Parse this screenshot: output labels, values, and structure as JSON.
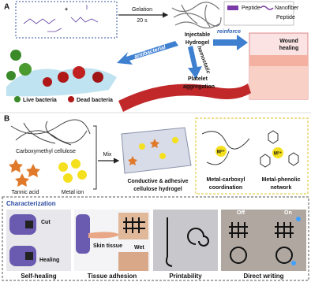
{
  "panel_a": {
    "label": "A",
    "plus": "+",
    "gelation": [
      "Gelation",
      "20 s"
    ],
    "legend": {
      "peptide": "Peptide",
      "nanofiber_peptide": [
        "Nanofiber",
        "Peptide"
      ]
    },
    "injectable_hydrogel": [
      "Injectable",
      "Hydrogel"
    ],
    "arrows": {
      "antibacterial": "antibacterial",
      "hemostatic": "hemostatic",
      "reinforce": "reinforce"
    },
    "wound_healing": [
      "Wound",
      "healing"
    ],
    "platelet_aggregation": [
      "Platelet",
      "aggregation"
    ],
    "live_bacteria": "Live bacteria",
    "dead_bacteria": "Dead bacteria"
  },
  "panel_b": {
    "label": "B",
    "carboxymethyl_cellulose": "Carboxymethyl cellulose",
    "tannic_acid": "Tannic acid",
    "metal_ion": "Metal ion",
    "mix": "Mix",
    "hydrogel": [
      "Conductive & adhesive",
      "cellulose hydrogel"
    ],
    "metal_symbol": [
      "M²⁺",
      "M²⁺"
    ],
    "metal_carboxyl": [
      "Metal-carboxyl",
      "coordination"
    ],
    "metal_phenolic": [
      "Metal-phenolic",
      "network"
    ],
    "characterization": {
      "title": "Characterization",
      "cut": "Cut",
      "healing": "Healing",
      "skin_tissue": "Skin tissue",
      "wet": "Wet",
      "off": "Off",
      "on": "On",
      "captions": [
        "Self-healing",
        "Tissue adhesion",
        "Printability",
        "Direct writing"
      ]
    }
  }
}
